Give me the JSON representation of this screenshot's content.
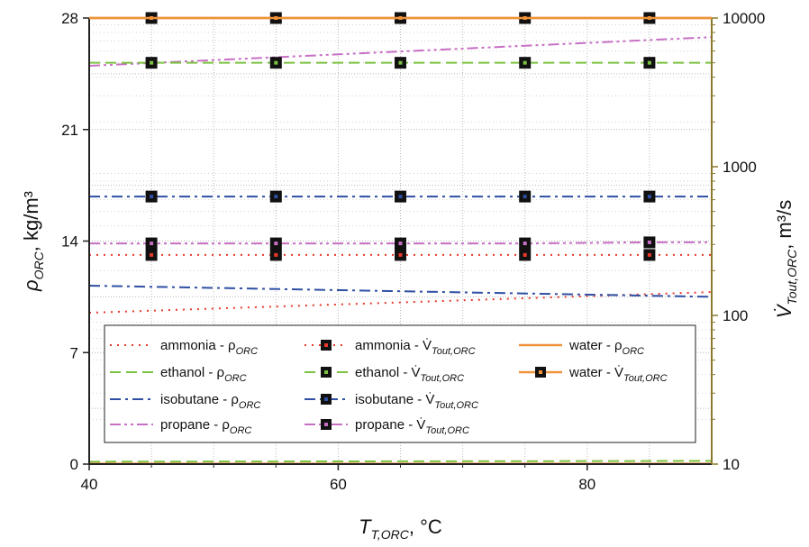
{
  "chart_data": {
    "type": "line",
    "x_axis": {
      "label_main": "T",
      "label_sub": "T,ORC",
      "label_unit": ", °C",
      "range": [
        40,
        90
      ],
      "ticks": [
        40,
        60,
        80
      ]
    },
    "y_left": {
      "label_main": "ρ",
      "label_sub": "ORC",
      "label_unit": ", kg/m³",
      "range": [
        0,
        28
      ],
      "ticks": [
        0,
        7,
        14,
        21,
        28
      ]
    },
    "y_right": {
      "scale": "log",
      "label_main": "V̇",
      "label_sub": "Tout,ORC",
      "label_unit": ", m³/s",
      "range": [
        10,
        10000
      ],
      "ticks": [
        "10",
        "100",
        "1000",
        "10000"
      ]
    },
    "grid": true,
    "x_points": [
      45,
      55,
      65,
      75,
      85
    ],
    "series": [
      {
        "name": "ammonia - ρORC",
        "axis": "left",
        "color": "#e8392b",
        "dash": "dotted",
        "x": [
          40,
          90
        ],
        "y": [
          9.5,
          10.8
        ]
      },
      {
        "name": "ethanol - ρORC",
        "axis": "left",
        "color": "#7cc242",
        "dash": "dashed",
        "x": [
          40,
          90
        ],
        "y": [
          0.15,
          0.2
        ]
      },
      {
        "name": "isobutane - ρORC",
        "axis": "left",
        "color": "#2e4fa3",
        "dash": "dashdot",
        "x": [
          40,
          90
        ],
        "y": [
          11.2,
          10.5
        ]
      },
      {
        "name": "propane - ρORC",
        "axis": "left",
        "color": "#c76fc4",
        "dash": "dashdotdot",
        "x": [
          40,
          90
        ],
        "y": [
          25.0,
          26.8
        ]
      },
      {
        "name": "water - ρORC",
        "axis": "left",
        "color": "#f0923a",
        "dash": "solid",
        "x": [
          40,
          90
        ],
        "y": [
          0.02,
          0.02
        ]
      },
      {
        "name": "ammonia - V̇Tout,ORC",
        "axis": "right",
        "color": "#e8392b",
        "dash": "dotted",
        "x": [
          45,
          55,
          65,
          75,
          85
        ],
        "y": [
          255,
          255,
          255,
          255,
          255
        ]
      },
      {
        "name": "ethanol - V̇Tout,ORC",
        "axis": "right",
        "color": "#7cc242",
        "dash": "dashed",
        "x": [
          45,
          55,
          65,
          75,
          85
        ],
        "y": [
          5000,
          5000,
          5000,
          5000,
          5000
        ]
      },
      {
        "name": "isobutane - V̇Tout,ORC",
        "axis": "right",
        "color": "#2e4fa3",
        "dash": "dashdot",
        "x": [
          45,
          55,
          65,
          75,
          85
        ],
        "y": [
          630,
          630,
          630,
          630,
          630
        ]
      },
      {
        "name": "propane - V̇Tout,ORC",
        "axis": "right",
        "color": "#c76fc4",
        "dash": "dashdotdot",
        "x": [
          45,
          55,
          65,
          75,
          85
        ],
        "y": [
          305,
          305,
          305,
          305,
          310
        ]
      },
      {
        "name": "water - V̇Tout,ORC",
        "axis": "right",
        "color": "#f0923a",
        "dash": "solid",
        "x": [
          45,
          55,
          65,
          75,
          85
        ],
        "y": [
          10000,
          10000,
          10000,
          10000,
          10000
        ]
      }
    ],
    "legend": {
      "position": "bottom-inside",
      "entries": [
        {
          "series": 0,
          "main": "ammonia - ρ",
          "sub": "ORC",
          "marker": false
        },
        {
          "series": 5,
          "main": "ammonia - V̇",
          "sub": "Tout,ORC",
          "marker": true
        },
        {
          "series": 4,
          "main": "water  - ρ",
          "sub": "ORC",
          "marker": false
        },
        {
          "series": 1,
          "main": "ethanol - ρ",
          "sub": "ORC",
          "marker": false
        },
        {
          "series": 6,
          "main": "ethanol  - V̇",
          "sub": "Tout,ORC",
          "marker": true
        },
        {
          "series": 9,
          "main": "water - V̇",
          "sub": "Tout,ORC",
          "marker": true
        },
        {
          "series": 2,
          "main": "isobutane - ρ",
          "sub": "ORC",
          "marker": false
        },
        {
          "series": 7,
          "main": "isobutane - V̇",
          "sub": "Tout,ORC",
          "marker": true
        },
        {
          "series": 3,
          "main": "propane - ρ",
          "sub": "ORC",
          "marker": false
        },
        {
          "series": 8,
          "main": "propane - V̇",
          "sub": "Tout,ORC",
          "marker": true
        }
      ]
    }
  }
}
